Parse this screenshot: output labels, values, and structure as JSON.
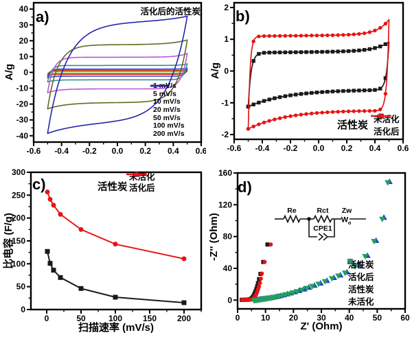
{
  "chart_data": [
    {
      "panel": "a",
      "letter": "a)",
      "type": "line",
      "annotation": "活化后的活性炭",
      "ylabel": "A/g",
      "xlim": [
        -0.6,
        0.6
      ],
      "ylim": [
        -44,
        44
      ],
      "xtick_values": [
        -0.6,
        -0.4,
        -0.2,
        0,
        0.2,
        0.4,
        0.6
      ],
      "xtick_labels": [
        "-0.6",
        "-0.4",
        "-0.2",
        "0.0",
        "0.2",
        "0.4",
        "0.6"
      ],
      "ytick_values": [
        -40,
        -30,
        -20,
        -10,
        0,
        10,
        20,
        30,
        40
      ],
      "ytick_labels": [
        "-40",
        "-30",
        "-20",
        "-10",
        "0",
        "10",
        "20",
        "30",
        "40"
      ],
      "legend_position": "bottom-right",
      "series": [
        {
          "label": "1 mV/s",
          "color": "#57d211",
          "marker": "none",
          "cv": {
            "v_range": [
              -0.5,
              0.5
            ],
            "i_max": 0.8,
            "i_min": -0.9,
            "i_top_mid": 0.55,
            "i_bot_mid": -0.5,
            "tau": 0.012
          }
        },
        {
          "label": "5 mV/s",
          "color": "#e32222",
          "marker": "none",
          "cv": {
            "v_range": [
              -0.5,
              0.5
            ],
            "i_max": 1.7,
            "i_min": -2.0,
            "i_top_mid": 1.25,
            "i_bot_mid": -1.2,
            "tau": 0.014
          }
        },
        {
          "label": "10 mV/s",
          "color": "#3340cc",
          "marker": "none",
          "cv": {
            "v_range": [
              -0.5,
              0.5
            ],
            "i_max": 2.6,
            "i_min": -3.3,
            "i_top_mid": 2.1,
            "i_bot_mid": -2.4,
            "tau": 0.018
          }
        },
        {
          "label": "20 mV/s",
          "color": "#368e8a",
          "marker": "none",
          "cv": {
            "v_range": [
              -0.5,
              0.5
            ],
            "i_max": 5.4,
            "i_min": -6.0,
            "i_top_mid": 4.4,
            "i_bot_mid": -4.7,
            "tau": 0.025
          }
        },
        {
          "label": "50 mV/s",
          "color": "#bb55d8",
          "marker": "none",
          "cv": {
            "v_range": [
              -0.5,
              0.5
            ],
            "i_max": 12.0,
            "i_min": -12.8,
            "i_top_mid": 9.6,
            "i_bot_mid": -10.4,
            "tau": 0.04
          }
        },
        {
          "label": "100 mV/s",
          "color": "#5a6e20",
          "marker": "none",
          "cv": {
            "v_range": [
              -0.5,
              0.5
            ],
            "i_max": 20.5,
            "i_min": -23.0,
            "i_top_mid": 17.5,
            "i_bot_mid": -19.0,
            "tau": 0.07
          }
        },
        {
          "label": "200 mV/s",
          "color": "#2324aa",
          "marker": "none",
          "cv": {
            "v_range": [
              -0.5,
              0.5
            ],
            "i_max": 35.5,
            "i_min": -38.5,
            "i_top_mid": 31.5,
            "i_bot_mid": -31.0,
            "tau": 0.13
          }
        }
      ]
    },
    {
      "panel": "b",
      "letter": "b)",
      "type": "line",
      "annotation": "活性炭",
      "ylabel": "A/g",
      "xlim": [
        -0.6,
        0.6
      ],
      "ylim": [
        -2.15,
        2.15
      ],
      "xtick_values": [
        -0.6,
        -0.4,
        -0.2,
        0,
        0.2,
        0.4,
        0.6
      ],
      "xtick_labels": [
        "-0.6",
        "-0.4",
        "-0.2",
        "0.0",
        "0.2",
        "0.4",
        "0.6"
      ],
      "ytick_values": [
        -2,
        -1,
        0,
        1,
        2
      ],
      "ytick_labels": [
        "-2",
        "-1",
        "0",
        "1",
        "2"
      ],
      "legend_position": "bottom-right",
      "series": [
        {
          "label": "未活化",
          "color": "#1a1a1a",
          "marker": "square",
          "cv": {
            "v_range": [
              -0.5,
              0.5
            ],
            "i_max": 0.91,
            "i_min": -1.12,
            "i_top_mid": 0.6,
            "i_bot_mid": -0.58,
            "slope_top": 0.05,
            "slope_bot": 0.0,
            "tau_left": 0.02,
            "tau_right": 0.018,
            "surge_tau_top": 0.1,
            "surge_tau_bot": 0.28
          }
        },
        {
          "label": "活化后",
          "color": "#e81414",
          "marker": "circle",
          "cv": {
            "v_range": [
              -0.5,
              0.5
            ],
            "i_max": 1.62,
            "i_min": -1.82,
            "i_top_mid": 1.12,
            "i_bot_mid": -1.19,
            "slope_top": 0.05,
            "slope_bot": -0.08,
            "tau_left": 0.013,
            "tau_right": 0.015,
            "surge_tau_top": 0.08,
            "surge_tau_bot": 0.3
          }
        }
      ]
    },
    {
      "panel": "c",
      "letter": "c)",
      "type": "line",
      "annotation": "活性炭",
      "xlabel": "扫描速率 (mV/s)",
      "ylabel": "比电容 (F/g)",
      "xlim": [
        -23,
        225
      ],
      "ylim": [
        0,
        300
      ],
      "xtick_values": [
        0,
        50,
        100,
        150,
        200
      ],
      "xtick_labels": [
        "0",
        "50",
        "100",
        "150",
        "200"
      ],
      "ytick_values": [
        0,
        50,
        100,
        150,
        200,
        250,
        300
      ],
      "ytick_labels": [
        "0",
        "50",
        "100",
        "150",
        "200",
        "250",
        "300"
      ],
      "legend_position": "top-right",
      "x": [
        1,
        5,
        10,
        20,
        50,
        100,
        200
      ],
      "series": [
        {
          "label": "未活化",
          "color": "#1a1a1a",
          "marker": "square",
          "values": [
            127,
            101,
            86,
            70,
            46,
            27,
            15
          ]
        },
        {
          "label": "活化后",
          "color": "#e81414",
          "marker": "circle",
          "values": [
            257,
            241,
            228,
            208,
            175,
            143,
            111
          ]
        }
      ]
    },
    {
      "panel": "d",
      "letter": "d)",
      "type": "scatter",
      "xlabel": "Z' (Ohm)",
      "ylabel": "-Z'' (Ohm)",
      "xlim": [
        0,
        60
      ],
      "ylim": [
        -11,
        160
      ],
      "xtick_values": [
        0,
        10,
        20,
        30,
        40,
        50,
        60
      ],
      "xtick_labels": [
        "0",
        "10",
        "20",
        "30",
        "40",
        "50",
        "60"
      ],
      "ytick_values": [
        0,
        40,
        80,
        120,
        160
      ],
      "ytick_labels": [
        "0",
        "40",
        "80",
        "120",
        "160"
      ],
      "legend_position": "right",
      "inset_circuit": {
        "labels": {
          "re": "Re",
          "rct": "Rct",
          "zw": "Zw",
          "wo": "W",
          "wo_sub": "o",
          "cpe": "CPE1"
        }
      },
      "series": [
        {
          "label": "活性炭",
          "color": "#1a1a1a",
          "marker": "square",
          "points": [
            [
              1.5,
              0.3
            ],
            [
              1.8,
              0.3
            ],
            [
              2.1,
              0.35
            ],
            [
              2.4,
              0.4
            ],
            [
              2.7,
              0.4
            ],
            [
              3.0,
              0.45
            ],
            [
              3.3,
              0.5
            ],
            [
              3.6,
              0.55
            ],
            [
              3.9,
              0.65
            ],
            [
              4.2,
              0.8
            ],
            [
              4.5,
              1.0
            ],
            [
              4.8,
              1.4
            ],
            [
              5.0,
              1.9
            ],
            [
              5.2,
              2.5
            ],
            [
              5.4,
              3.3
            ],
            [
              5.6,
              4.3
            ],
            [
              5.8,
              5.5
            ],
            [
              6.0,
              7.0
            ],
            [
              6.2,
              8.8
            ],
            [
              6.45,
              11.0
            ],
            [
              6.7,
              13.8
            ],
            [
              7.0,
              17.2
            ],
            [
              7.3,
              21.3
            ],
            [
              7.7,
              26.5
            ],
            [
              8.2,
              33.0
            ],
            [
              9.2,
              48.0
            ],
            [
              10.7,
              70.0
            ]
          ]
        },
        {
          "label": "活化后",
          "color": "#e81414",
          "marker": "circle",
          "points": [
            [
              1.6,
              0.1
            ],
            [
              1.9,
              0.1
            ],
            [
              2.2,
              0.15
            ],
            [
              2.5,
              0.2
            ],
            [
              2.8,
              0.2
            ],
            [
              3.1,
              0.25
            ],
            [
              3.4,
              0.3
            ],
            [
              3.7,
              0.35
            ],
            [
              4.0,
              0.4
            ],
            [
              4.3,
              0.5
            ],
            [
              4.6,
              0.6
            ],
            [
              4.9,
              0.8
            ],
            [
              5.2,
              1.1
            ],
            [
              5.4,
              1.5
            ],
            [
              5.6,
              2.0
            ],
            [
              5.8,
              2.7
            ],
            [
              6.0,
              3.5
            ],
            [
              6.2,
              4.5
            ],
            [
              6.4,
              5.7
            ],
            [
              6.6,
              7.1
            ],
            [
              6.85,
              8.9
            ],
            [
              7.1,
              11.1
            ],
            [
              7.35,
              13.8
            ],
            [
              7.65,
              17.2
            ],
            [
              8.0,
              21.5
            ],
            [
              8.35,
              27.0
            ],
            [
              8.7,
              33.5
            ],
            [
              9.7,
              48.0
            ],
            [
              11.9,
              70.0
            ]
          ]
        },
        {
          "label": "活性炭",
          "color": "#2442cc",
          "marker": "triangle-up",
          "points": [
            [
              6.6,
              0.4
            ],
            [
              7.0,
              0.6
            ],
            [
              7.4,
              0.8
            ],
            [
              7.8,
              1.0
            ],
            [
              8.2,
              1.2
            ],
            [
              8.6,
              1.4
            ],
            [
              9.0,
              1.6
            ],
            [
              9.4,
              1.8
            ],
            [
              9.9,
              2.0
            ],
            [
              10.4,
              2.3
            ],
            [
              10.9,
              2.6
            ],
            [
              11.5,
              2.9
            ],
            [
              12.1,
              3.3
            ],
            [
              12.8,
              3.7
            ],
            [
              13.6,
              4.2
            ],
            [
              14.5,
              4.9
            ],
            [
              15.5,
              5.7
            ],
            [
              16.6,
              6.6
            ],
            [
              17.8,
              7.7
            ],
            [
              19.1,
              8.9
            ],
            [
              20.5,
              10.3
            ],
            [
              22.0,
              11.9
            ],
            [
              23.7,
              13.8
            ],
            [
              25.5,
              16.0
            ],
            [
              27.5,
              18.5
            ],
            [
              29.7,
              21.3
            ],
            [
              32.0,
              24.5
            ],
            [
              34.5,
              28.2
            ],
            [
              36.8,
              31.5
            ],
            [
              39.2,
              35.2
            ],
            [
              43.7,
              44.0
            ],
            [
              46.5,
              56.0
            ],
            [
              49.6,
              75.0
            ],
            [
              52.4,
              104.0
            ],
            [
              54.4,
              149.0
            ]
          ]
        },
        {
          "label": "未活化",
          "color": "#22a05c",
          "marker": "triangle-down",
          "points": [
            [
              5.9,
              -0.6
            ],
            [
              6.3,
              -0.4
            ],
            [
              6.7,
              -0.2
            ],
            [
              7.1,
              0.0
            ],
            [
              7.5,
              0.2
            ],
            [
              7.9,
              0.4
            ],
            [
              8.3,
              0.6
            ],
            [
              8.7,
              0.8
            ],
            [
              9.2,
              1.0
            ],
            [
              9.7,
              1.3
            ],
            [
              10.2,
              1.6
            ],
            [
              10.8,
              1.9
            ],
            [
              11.4,
              2.3
            ],
            [
              12.1,
              2.7
            ],
            [
              12.9,
              3.2
            ],
            [
              13.8,
              3.9
            ],
            [
              14.8,
              4.7
            ],
            [
              15.9,
              5.6
            ],
            [
              17.1,
              6.7
            ],
            [
              18.4,
              7.9
            ],
            [
              19.8,
              9.3
            ],
            [
              21.3,
              10.9
            ],
            [
              23.0,
              12.8
            ],
            [
              24.8,
              15.0
            ],
            [
              26.8,
              17.5
            ],
            [
              29.0,
              20.3
            ],
            [
              31.3,
              23.5
            ],
            [
              33.8,
              27.2
            ],
            [
              36.1,
              30.5
            ],
            [
              38.5,
              34.2
            ],
            [
              42.0,
              42.5
            ],
            [
              45.7,
              55.0
            ],
            [
              48.9,
              74.0
            ],
            [
              51.8,
              102.0
            ],
            [
              53.8,
              148.0
            ]
          ]
        }
      ]
    }
  ]
}
